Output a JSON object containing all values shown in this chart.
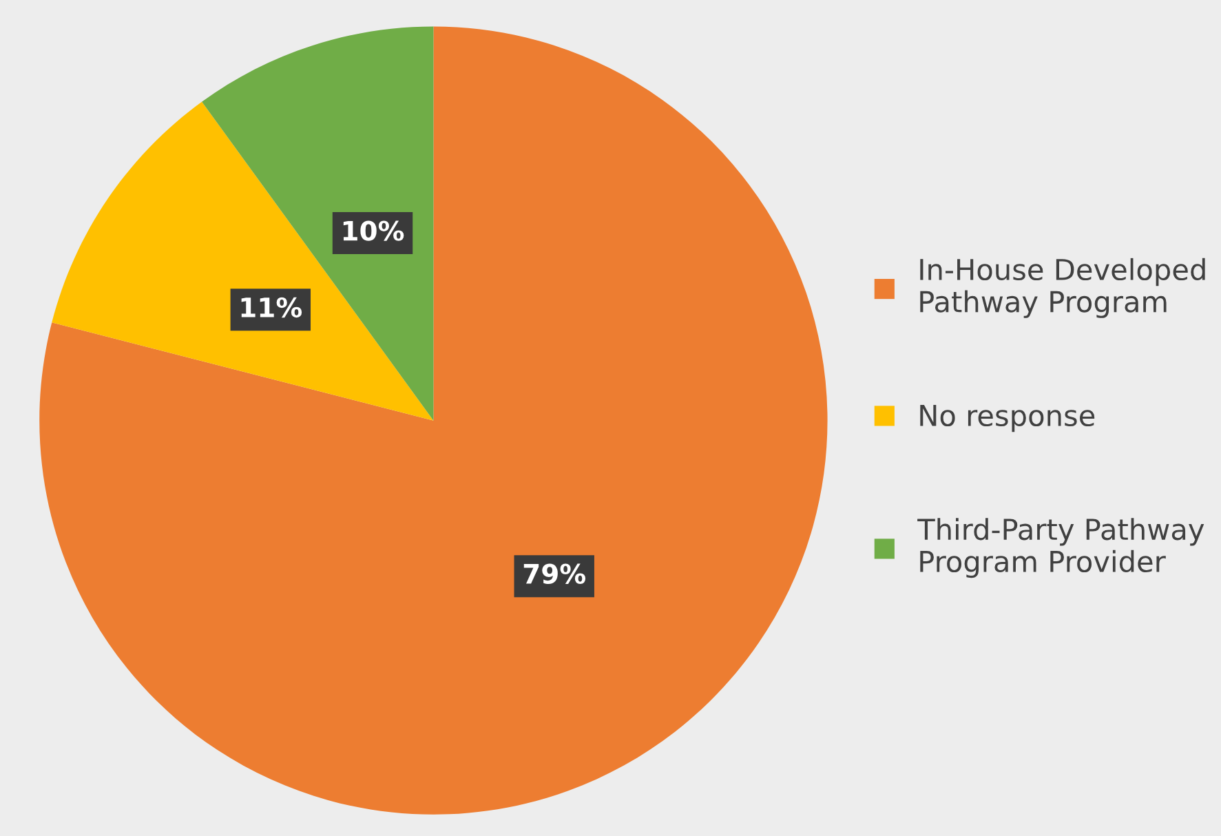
{
  "chart_data": {
    "type": "pie",
    "categories": [
      "In-House Developed Pathway Program",
      "No response",
      "Third-Party Pathway Program Provider"
    ],
    "values": [
      79,
      11,
      10
    ],
    "colors": [
      "#ed7d31",
      "#ffc000",
      "#70ad47"
    ],
    "value_labels": [
      "79%",
      "11%",
      "10%"
    ],
    "legend": "right"
  }
}
